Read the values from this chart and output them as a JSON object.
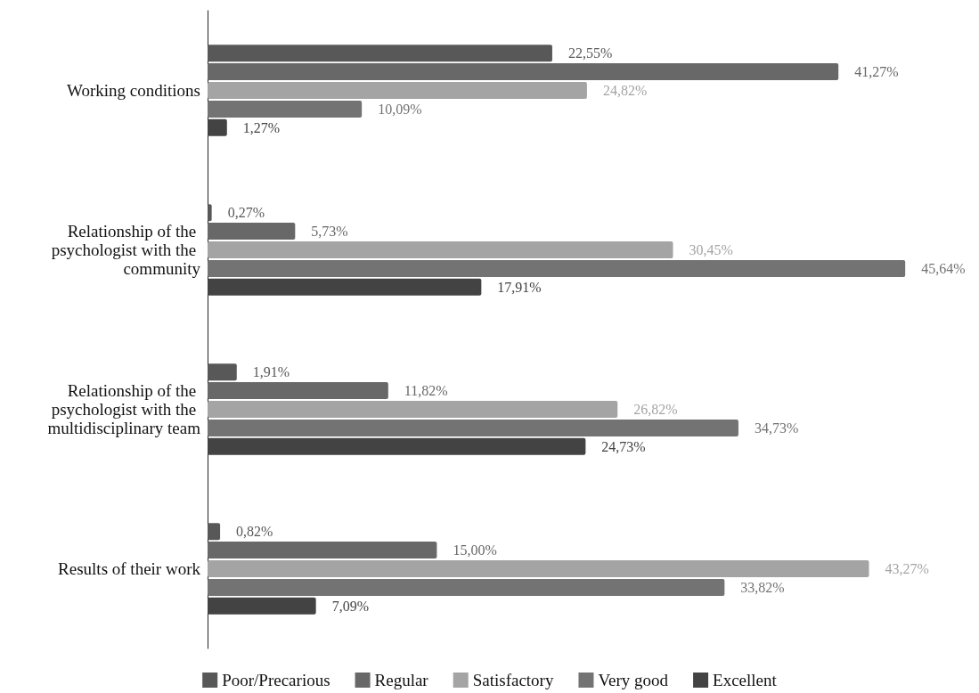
{
  "chart_data": {
    "type": "bar",
    "orientation": "horizontal",
    "categories": [
      "Working conditions",
      "Relationship of the psychologist with the community",
      "Relationship of the psychologist with the multidisciplinary team",
      "Results of their work"
    ],
    "series": [
      {
        "name": "Poor/Precarious",
        "color": "#585858",
        "values": [
          22.55,
          0.27,
          1.91,
          0.82
        ],
        "value_labels": [
          "22,55%",
          "0,27%",
          "1,91%",
          "0,82%"
        ]
      },
      {
        "name": "Regular",
        "color": "#686868",
        "values": [
          41.27,
          5.73,
          11.82,
          15.0
        ],
        "value_labels": [
          "41,27%",
          "5,73%",
          "11,82%",
          "15,00%"
        ]
      },
      {
        "name": "Satisfactory",
        "color": "#a4a4a4",
        "values": [
          24.82,
          30.45,
          26.82,
          43.27
        ],
        "value_labels": [
          "24,82%",
          "30,45%",
          "26,82%",
          "43,27%"
        ]
      },
      {
        "name": "Very good",
        "color": "#737373",
        "values": [
          10.09,
          45.64,
          34.73,
          33.82
        ],
        "value_labels": [
          "10,09%",
          "45,64%",
          "34,73%",
          "33,82%"
        ]
      },
      {
        "name": "Excellent",
        "color": "#434343",
        "values": [
          1.27,
          17.91,
          24.73,
          7.09
        ],
        "value_labels": [
          "1,27%",
          "17,91%",
          "24,73%",
          "7,09%"
        ]
      }
    ],
    "tick_labels": "y",
    "grid": false,
    "legend": "bottom"
  }
}
